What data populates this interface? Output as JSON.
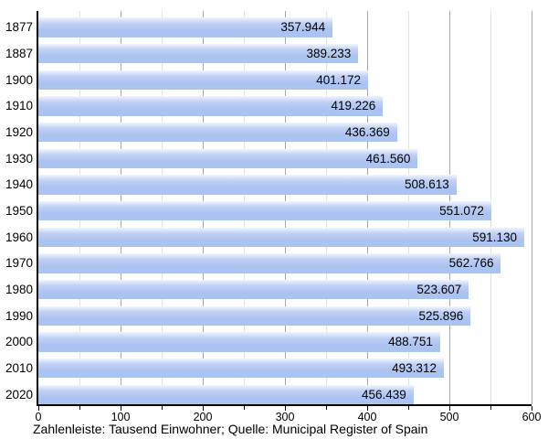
{
  "chart_data": {
    "type": "bar",
    "orientation": "horizontal",
    "categories": [
      "1877",
      "1887",
      "1900",
      "1910",
      "1920",
      "1930",
      "1940",
      "1950",
      "1960",
      "1970",
      "1980",
      "1990",
      "2000",
      "2010",
      "2020"
    ],
    "values": [
      357.944,
      389.233,
      401.172,
      419.226,
      436.369,
      461.56,
      508.613,
      551.072,
      591.13,
      562.766,
      523.607,
      525.896,
      488.751,
      493.312,
      456.439
    ],
    "value_labels": [
      "357.944",
      "389.233",
      "401.172",
      "419.226",
      "436.369",
      "461.560",
      "508.613",
      "551.072",
      "591.130",
      "562.766",
      "523.607",
      "525.896",
      "488.751",
      "493.312",
      "456.439"
    ],
    "xlim": [
      0,
      600
    ],
    "x_tick_labels": [
      "0",
      "100",
      "200",
      "300",
      "400",
      "500",
      "600"
    ],
    "x_major_tick_step": 100,
    "x_minor_tick_step": 50,
    "grid": "vertical",
    "legend": "none",
    "caption": "Zahlenleiste: Tausend Einwohner; Quelle: Municipal Register of Spain",
    "colors": {
      "bar_fill": "#abc3f1",
      "bar_fill_mid": "#bfd0f6",
      "bar_fill_light": "#f1f5fd",
      "grid_major": "#a8a8a8",
      "grid_minor": "#e2e2e2",
      "axis": "#000000",
      "text": "#000000",
      "background": "#ffffff"
    }
  }
}
